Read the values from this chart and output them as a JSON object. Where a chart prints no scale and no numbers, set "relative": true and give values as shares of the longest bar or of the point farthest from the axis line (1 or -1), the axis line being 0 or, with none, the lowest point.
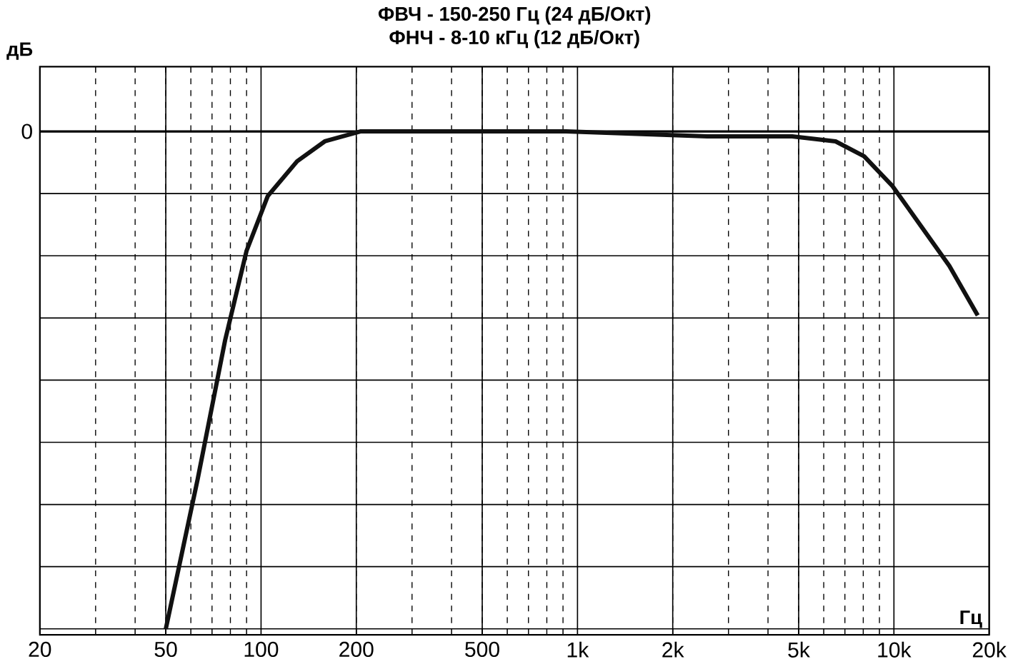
{
  "chart_data": {
    "type": "line",
    "title": "ФВЧ - 150-250 Гц (24 дБ/Окт)",
    "subtitle": "ФНЧ - 8-10 кГц (12 дБ/Окт)",
    "xlabel": "Гц",
    "ylabel": "дБ",
    "relative": true,
    "log": "x",
    "grid": true,
    "marker": "none",
    "line_style": "solid",
    "xlim": [
      20,
      20000
    ],
    "xticks": [
      20,
      50,
      100,
      200,
      500,
      {
        "value": 1000,
        "label": "1k"
      },
      {
        "value": 2000,
        "label": "2k"
      },
      {
        "value": 5000,
        "label": "5k"
      },
      {
        "value": 10000,
        "label": "10k"
      },
      {
        "value": 20000,
        "label": "20k"
      }
    ],
    "ref_lines": [
      {
        "axis": "y",
        "value": 0,
        "label": "0",
        "color": "#000000"
      }
    ],
    "x": [
      50,
      63,
      77,
      90,
      105,
      130,
      159,
      206,
      920,
      2570,
      4770,
      6540,
      8050,
      9900,
      12170,
      14960,
      18400
    ],
    "series": [
      {
        "color": "#111111",
        "values": [
          -1,
          -0.7,
          -0.42,
          -0.24,
          -0.13,
          -0.06,
          -0.02,
          0,
          0,
          -0.01,
          -0.01,
          -0.02,
          -0.05,
          -0.11,
          -0.19,
          -0.27,
          -0.37
        ]
      }
    ]
  }
}
